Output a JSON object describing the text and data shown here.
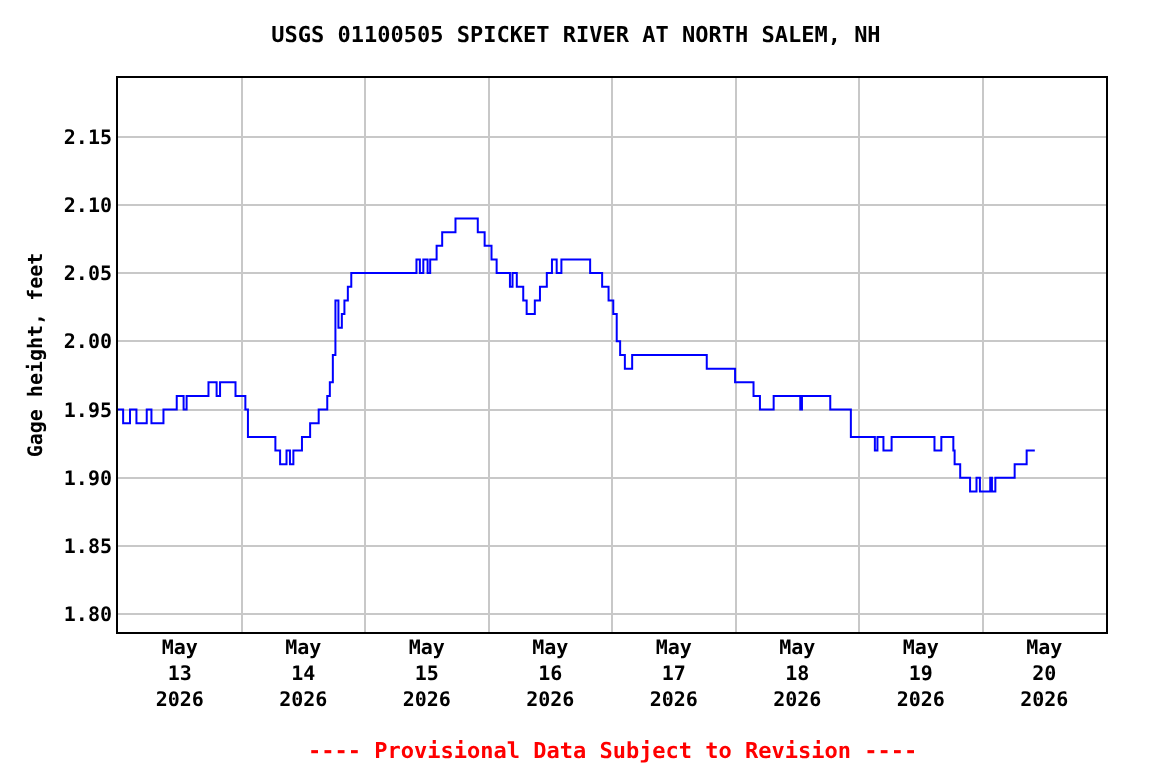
{
  "chart_data": {
    "type": "step",
    "title": "USGS 01100505 SPICKET RIVER AT NORTH SALEM, NH",
    "ylabel": "Gage height, feet",
    "annotations": [
      "---- Provisional Data Subject to Revision ----"
    ],
    "x": [
      "2026-05-13T00:00",
      "2026-05-13T01:00",
      "2026-05-13T02:20",
      "2026-05-13T03:35",
      "2026-05-13T05:35",
      "2026-05-13T06:30",
      "2026-05-13T08:50",
      "2026-05-13T11:25",
      "2026-05-13T12:45",
      "2026-05-13T13:20",
      "2026-05-13T17:35",
      "2026-05-13T19:10",
      "2026-05-13T19:50",
      "2026-05-13T22:50",
      "2026-05-14T00:45",
      "2026-05-14T01:15",
      "2026-05-14T06:35",
      "2026-05-14T07:30",
      "2026-05-14T08:45",
      "2026-05-14T09:25",
      "2026-05-14T10:05",
      "2026-05-14T11:45",
      "2026-05-14T13:20",
      "2026-05-14T15:00",
      "2026-05-14T16:40",
      "2026-05-14T17:10",
      "2026-05-14T17:45",
      "2026-05-14T18:15",
      "2026-05-14T18:50",
      "2026-05-14T19:30",
      "2026-05-14T20:00",
      "2026-05-14T20:40",
      "2026-05-14T21:20",
      "2026-05-15T10:00",
      "2026-05-15T10:40",
      "2026-05-15T11:20",
      "2026-05-15T12:10",
      "2026-05-15T12:40",
      "2026-05-15T13:55",
      "2026-05-15T15:00",
      "2026-05-15T17:35",
      "2026-05-15T21:55",
      "2026-05-15T23:15",
      "2026-05-16T00:35",
      "2026-05-16T01:35",
      "2026-05-16T04:10",
      "2026-05-16T04:40",
      "2026-05-16T05:30",
      "2026-05-16T06:45",
      "2026-05-16T07:25",
      "2026-05-16T09:00",
      "2026-05-16T10:00",
      "2026-05-16T11:20",
      "2026-05-16T12:20",
      "2026-05-16T13:15",
      "2026-05-16T14:10",
      "2026-05-16T19:45",
      "2026-05-16T22:05",
      "2026-05-16T23:20",
      "2026-05-17T00:15",
      "2026-05-17T00:55",
      "2026-05-17T01:35",
      "2026-05-17T02:30",
      "2026-05-17T03:55",
      "2026-05-17T18:25",
      "2026-05-17T23:55",
      "2026-05-18T03:30",
      "2026-05-18T04:45",
      "2026-05-18T07:25",
      "2026-05-18T12:35",
      "2026-05-18T12:55",
      "2026-05-18T18:25",
      "2026-05-18T22:25",
      "2026-05-19T03:05",
      "2026-05-19T03:35",
      "2026-05-19T04:45",
      "2026-05-19T06:20",
      "2026-05-19T14:40",
      "2026-05-19T16:00",
      "2026-05-19T18:20",
      "2026-05-19T18:35",
      "2026-05-19T19:40",
      "2026-05-19T21:35",
      "2026-05-19T22:50",
      "2026-05-19T23:30",
      "2026-05-20T01:30",
      "2026-05-20T01:50",
      "2026-05-20T02:30",
      "2026-05-20T06:15",
      "2026-05-20T08:35",
      "2026-05-20T10:10"
    ],
    "series": [
      {
        "color": "#0000ff",
        "values": [
          1.95,
          1.94,
          1.95,
          1.94,
          1.95,
          1.94,
          1.95,
          1.96,
          1.95,
          1.96,
          1.97,
          1.96,
          1.97,
          1.96,
          1.95,
          1.93,
          1.92,
          1.91,
          1.92,
          1.91,
          1.92,
          1.93,
          1.94,
          1.95,
          1.96,
          1.97,
          1.99,
          2.03,
          2.01,
          2.02,
          2.03,
          2.04,
          2.05,
          2.06,
          2.05,
          2.06,
          2.05,
          2.06,
          2.07,
          2.08,
          2.09,
          2.08,
          2.07,
          2.06,
          2.05,
          2.04,
          2.05,
          2.04,
          2.03,
          2.02,
          2.03,
          2.04,
          2.05,
          2.06,
          2.05,
          2.06,
          2.05,
          2.04,
          2.03,
          2.02,
          2.0,
          1.99,
          1.98,
          1.99,
          1.98,
          1.97,
          1.96,
          1.95,
          1.96,
          1.95,
          1.96,
          1.95,
          1.93,
          1.92,
          1.93,
          1.92,
          1.93,
          1.92,
          1.93,
          1.92,
          1.91,
          1.9,
          1.89,
          1.9,
          1.89,
          1.9,
          1.89,
          1.9,
          1.91,
          1.92,
          1.92
        ]
      }
    ],
    "xlim": [
      "2026-05-13T00:00",
      "2026-05-21T00:00"
    ],
    "xticks": [
      {
        "value": "2026-05-14T00:00",
        "label": null
      },
      {
        "value": "2026-05-15T00:00",
        "label": null
      },
      {
        "value": "2026-05-16T00:00",
        "label": null
      },
      {
        "value": "2026-05-17T00:00",
        "label": null
      },
      {
        "value": "2026-05-18T00:00",
        "label": null
      },
      {
        "value": "2026-05-19T00:00",
        "label": null
      },
      {
        "value": "2026-05-20T00:00",
        "label": null
      },
      {
        "value": "2026-05-13T12:00",
        "label": "May\n13\n2026"
      },
      {
        "value": "2026-05-14T12:00",
        "label": "May\n14\n2026"
      },
      {
        "value": "2026-05-15T12:00",
        "label": "May\n15\n2026"
      },
      {
        "value": "2026-05-16T12:00",
        "label": "May\n16\n2026"
      },
      {
        "value": "2026-05-17T12:00",
        "label": "May\n17\n2026"
      },
      {
        "value": "2026-05-18T12:00",
        "label": "May\n18\n2026"
      },
      {
        "value": "2026-05-19T12:00",
        "label": "May\n19\n2026"
      },
      {
        "value": "2026-05-20T12:00",
        "label": "May\n20\n2026"
      }
    ],
    "ylim": [
      1.787,
      2.193
    ],
    "yticks": [
      {
        "value": 1.8,
        "label": "1.80"
      },
      {
        "value": 1.85,
        "label": "1.85"
      },
      {
        "value": 1.9,
        "label": "1.90"
      },
      {
        "value": 1.95,
        "label": "1.95"
      },
      {
        "value": 2.0,
        "label": "2.00"
      },
      {
        "value": 2.05,
        "label": "2.05"
      },
      {
        "value": 2.1,
        "label": "2.10"
      },
      {
        "value": 2.15,
        "label": "2.15"
      }
    ],
    "grid": true
  }
}
